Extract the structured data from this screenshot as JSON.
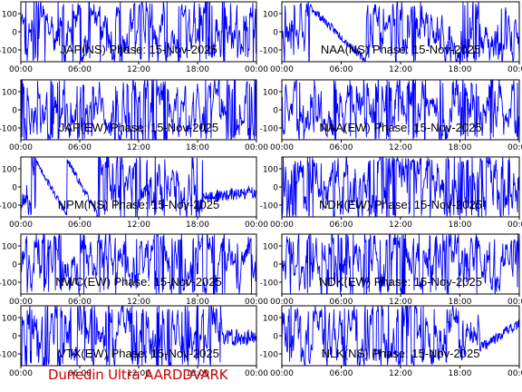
{
  "footer": "Dunedin Ultra AARDDVARK",
  "chart_data": [
    {
      "type": "line",
      "title": "JAP(NS) Phase: 15-Nov-2025",
      "xticks": [
        "00:00",
        "06:00",
        "12:00",
        "18:00",
        "00:00"
      ],
      "yticks": [
        100,
        0,
        -100
      ],
      "ylim": [
        -165,
        165
      ],
      "xlim_hours": [
        0,
        24
      ],
      "color": "#0000ff",
      "profile": "noise",
      "seed": 11
    },
    {
      "type": "line",
      "title": "NAA(NS) Phase: 15-Nov-2025",
      "xticks": [
        "00:00",
        "06:00",
        "12:00",
        "18:00",
        "00:00"
      ],
      "yticks": [
        100,
        0,
        -100
      ],
      "ylim": [
        -165,
        165
      ],
      "xlim_hours": [
        0,
        24
      ],
      "color": "#0000ff",
      "profile": "naa_ns",
      "seed": 23
    },
    {
      "type": "line",
      "title": "JAP(EW) Phase: 15-Nov-2025",
      "xticks": [
        "00:00",
        "06:00",
        "12:00",
        "18:00",
        "00:00"
      ],
      "yticks": [
        100,
        0,
        -100
      ],
      "ylim": [
        -165,
        165
      ],
      "xlim_hours": [
        0,
        24
      ],
      "color": "#0000ff",
      "profile": "noise",
      "seed": 37
    },
    {
      "type": "line",
      "title": "NAA(EW) Phase: 15-Nov-2025",
      "xticks": [
        "00:00",
        "06:00",
        "12:00",
        "18:00",
        "00:00"
      ],
      "yticks": [
        100,
        0,
        -100
      ],
      "ylim": [
        -165,
        165
      ],
      "xlim_hours": [
        0,
        24
      ],
      "color": "#0000ff",
      "profile": "noise",
      "seed": 41
    },
    {
      "type": "line",
      "title": "NPM(NS) Phase: 15-Nov-2025",
      "xticks": [
        "00:00",
        "06:00",
        "12:00",
        "18:00",
        "00:00"
      ],
      "yticks": [
        100,
        0,
        -100
      ],
      "ylim": [
        -165,
        165
      ],
      "xlim_hours": [
        0,
        24
      ],
      "color": "#0000ff",
      "profile": "npm_ns",
      "seed": 53
    },
    {
      "type": "line",
      "title": "NDK(EW) Phase: 15-Nov-2025",
      "xticks": [
        "00:00",
        "06:00",
        "12:00",
        "18:00",
        "00:00"
      ],
      "yticks": [
        100,
        0,
        -100
      ],
      "ylim": [
        -165,
        165
      ],
      "xlim_hours": [
        0,
        24
      ],
      "color": "#0000ff",
      "profile": "noise",
      "seed": 67
    },
    {
      "type": "line",
      "title": "NWC(EW) Phase: 15-Nov-2025",
      "xticks": [
        "00:00",
        "06:00",
        "12:00",
        "18:00",
        "00:00"
      ],
      "yticks": [
        100,
        0,
        -100
      ],
      "ylim": [
        -165,
        165
      ],
      "xlim_hours": [
        0,
        24
      ],
      "color": "#0000ff",
      "profile": "noise",
      "seed": 71
    },
    {
      "type": "line",
      "title": "NDK(EW) Phase: 15-Nov-2025",
      "xticks": [
        "00:00",
        "06:00",
        "12:00",
        "18:00",
        "00:00"
      ],
      "yticks": [
        100,
        0,
        -100
      ],
      "ylim": [
        -165,
        165
      ],
      "xlim_hours": [
        0,
        24
      ],
      "color": "#0000ff",
      "profile": "noise",
      "seed": 83
    },
    {
      "type": "line",
      "title": "VTX(EW) Phase: 15-Nov-2025",
      "xticks": [
        "00:00",
        "06:00",
        "12:00",
        "18:00",
        "00:00"
      ],
      "yticks": [
        100,
        0,
        -100
      ],
      "ylim": [
        -165,
        165
      ],
      "xlim_hours": [
        0,
        24
      ],
      "color": "#0000ff",
      "profile": "vtx",
      "seed": 97
    },
    {
      "type": "line",
      "title": "NLK(NS) Phase: 15-Nov-2025",
      "xticks": [
        "00:00",
        "06:00",
        "12:00",
        "18:00",
        "00:00"
      ],
      "yticks": [
        100,
        0,
        -100
      ],
      "ylim": [
        -165,
        165
      ],
      "xlim_hours": [
        0,
        24
      ],
      "color": "#0000ff",
      "profile": "nlk",
      "seed": 101
    }
  ]
}
